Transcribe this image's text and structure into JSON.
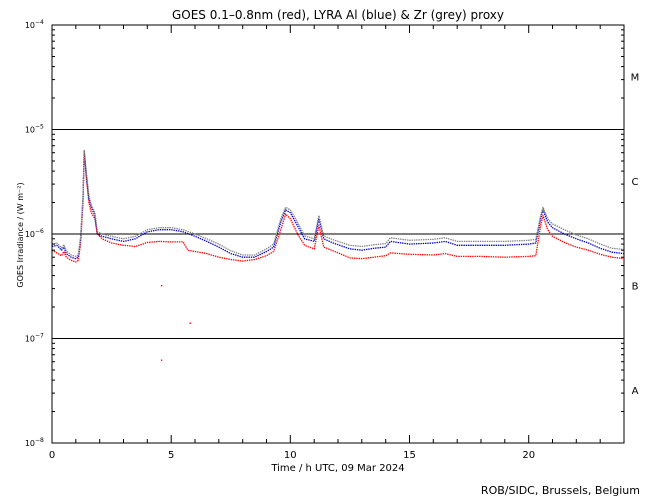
{
  "chart_data": {
    "type": "line",
    "title": "GOES 0.1–0.8nm (red), LYRA Al (blue) & Zr (grey) proxy",
    "xlabel": "Time / h UTC, 09 Mar 2024",
    "ylabel": "GOES Irradiance / (W m⁻²)",
    "xlim": [
      0,
      24
    ],
    "ylim": [
      1e-08,
      0.0001
    ],
    "yscale": "log",
    "x_ticks": [
      0,
      5,
      10,
      15,
      20
    ],
    "y_ticks": [
      {
        "value": 1e-08,
        "base": "10",
        "exp": "−8"
      },
      {
        "value": 1e-07,
        "base": "10",
        "exp": "−7"
      },
      {
        "value": 1e-06,
        "base": "10",
        "exp": "−6"
      },
      {
        "value": 1e-05,
        "base": "10",
        "exp": "−5"
      },
      {
        "value": 0.0001,
        "base": "10",
        "exp": "−4"
      }
    ],
    "reference_lines": [
      1e-07,
      1e-06,
      1e-05
    ],
    "flare_classes": [
      {
        "label": "A",
        "y": 3.2e-08
      },
      {
        "label": "B",
        "y": 3.2e-07
      },
      {
        "label": "C",
        "y": 3.2e-06
      },
      {
        "label": "M",
        "y": 3.2e-05
      }
    ],
    "series": [
      {
        "color": "#ff0000",
        "points": [
          [
            0.0,
            7e-07
          ],
          [
            0.2,
            6.6e-07
          ],
          [
            0.4,
            6.2e-07
          ],
          [
            0.5,
            6.8e-07
          ],
          [
            0.6,
            6e-07
          ],
          [
            0.8,
            5.6e-07
          ],
          [
            1.0,
            5.4e-07
          ],
          [
            1.1,
            5.6e-07
          ],
          [
            1.2,
            8e-07
          ],
          [
            1.3,
            2e-06
          ],
          [
            1.35,
            6.2e-06
          ],
          [
            1.45,
            3.2e-06
          ],
          [
            1.55,
            2e-06
          ],
          [
            1.65,
            1.6e-06
          ],
          [
            1.8,
            1.4e-06
          ],
          [
            1.9,
            1e-06
          ],
          [
            2.1,
            9e-07
          ],
          [
            2.5,
            8.2e-07
          ],
          [
            3.0,
            7.8e-07
          ],
          [
            3.5,
            7.6e-07
          ],
          [
            4.0,
            8.3e-07
          ],
          [
            4.5,
            8.5e-07
          ],
          [
            5.0,
            8.4e-07
          ],
          [
            5.5,
            8.4e-07
          ],
          [
            5.7,
            7e-07
          ],
          [
            6.0,
            6.8e-07
          ],
          [
            6.5,
            6.5e-07
          ],
          [
            7.0,
            6e-07
          ],
          [
            7.5,
            5.7e-07
          ],
          [
            8.0,
            5.5e-07
          ],
          [
            8.5,
            5.7e-07
          ],
          [
            9.0,
            6.2e-07
          ],
          [
            9.3,
            6.8e-07
          ],
          [
            9.6,
            1.1e-06
          ],
          [
            9.8,
            1.55e-06
          ],
          [
            10.0,
            1.4e-06
          ],
          [
            10.3,
            1e-06
          ],
          [
            10.6,
            7.8e-07
          ],
          [
            11.0,
            7.2e-07
          ],
          [
            11.2,
            1.2e-06
          ],
          [
            11.4,
            7.5e-07
          ],
          [
            11.8,
            6.9e-07
          ],
          [
            12.5,
            5.9e-07
          ],
          [
            13.0,
            5.8e-07
          ],
          [
            13.5,
            6e-07
          ],
          [
            14.0,
            6.2e-07
          ],
          [
            14.2,
            6.6e-07
          ],
          [
            15.0,
            6.4e-07
          ],
          [
            16.0,
            6.3e-07
          ],
          [
            16.5,
            6.5e-07
          ],
          [
            17.0,
            6.1e-07
          ],
          [
            18.0,
            6.1e-07
          ],
          [
            19.0,
            6e-07
          ],
          [
            20.0,
            6.1e-07
          ],
          [
            20.3,
            6.2e-07
          ],
          [
            20.5,
            1.2e-06
          ],
          [
            20.6,
            1.5e-06
          ],
          [
            20.8,
            1.1e-06
          ],
          [
            21.0,
            9.5e-07
          ],
          [
            21.5,
            8.3e-07
          ],
          [
            22.0,
            7.5e-07
          ],
          [
            22.5,
            7e-07
          ],
          [
            23.0,
            6.4e-07
          ],
          [
            23.5,
            6e-07
          ],
          [
            24.0,
            5.8e-07
          ]
        ],
        "outliers": [
          [
            4.6,
            3.2e-07
          ],
          [
            4.6,
            6.2e-08
          ],
          [
            5.8,
            1.4e-07
          ]
        ]
      },
      {
        "color": "#0000cc",
        "points": [
          [
            0.0,
            7.6e-07
          ],
          [
            0.2,
            7.8e-07
          ],
          [
            0.4,
            7e-07
          ],
          [
            0.5,
            7.5e-07
          ],
          [
            0.6,
            6.5e-07
          ],
          [
            0.8,
            6e-07
          ],
          [
            1.0,
            5.8e-07
          ],
          [
            1.1,
            6e-07
          ],
          [
            1.2,
            9e-07
          ],
          [
            1.3,
            2.2e-06
          ],
          [
            1.35,
            6e-06
          ],
          [
            1.45,
            3.5e-06
          ],
          [
            1.55,
            2.2e-06
          ],
          [
            1.65,
            1.8e-06
          ],
          [
            1.8,
            1.5e-06
          ],
          [
            1.9,
            1e-06
          ],
          [
            2.1,
            9.5e-07
          ],
          [
            2.5,
            9e-07
          ],
          [
            3.0,
            8.5e-07
          ],
          [
            3.5,
            9e-07
          ],
          [
            4.0,
            1.05e-06
          ],
          [
            4.5,
            1.1e-06
          ],
          [
            5.0,
            1.1e-06
          ],
          [
            5.5,
            1.05e-06
          ],
          [
            6.0,
            9.5e-07
          ],
          [
            6.5,
            8.5e-07
          ],
          [
            7.0,
            7.5e-07
          ],
          [
            7.5,
            6.5e-07
          ],
          [
            8.0,
            6e-07
          ],
          [
            8.5,
            6e-07
          ],
          [
            9.0,
            6.8e-07
          ],
          [
            9.3,
            7.5e-07
          ],
          [
            9.6,
            1.3e-06
          ],
          [
            9.8,
            1.7e-06
          ],
          [
            10.0,
            1.6e-06
          ],
          [
            10.3,
            1.2e-06
          ],
          [
            10.6,
            9e-07
          ],
          [
            11.0,
            8.5e-07
          ],
          [
            11.2,
            1.4e-06
          ],
          [
            11.4,
            9e-07
          ],
          [
            11.8,
            8.2e-07
          ],
          [
            12.5,
            7.2e-07
          ],
          [
            13.0,
            7e-07
          ],
          [
            13.5,
            7.3e-07
          ],
          [
            14.0,
            7.5e-07
          ],
          [
            14.2,
            8.5e-07
          ],
          [
            15.0,
            8e-07
          ],
          [
            16.0,
            8.2e-07
          ],
          [
            16.5,
            8.5e-07
          ],
          [
            17.0,
            7.8e-07
          ],
          [
            18.0,
            7.8e-07
          ],
          [
            19.0,
            7.8e-07
          ],
          [
            20.0,
            8e-07
          ],
          [
            20.3,
            8.2e-07
          ],
          [
            20.5,
            1.4e-06
          ],
          [
            20.6,
            1.7e-06
          ],
          [
            20.8,
            1.3e-06
          ],
          [
            21.0,
            1.15e-06
          ],
          [
            21.5,
            1e-06
          ],
          [
            22.0,
            9e-07
          ],
          [
            22.5,
            8.2e-07
          ],
          [
            23.0,
            7.3e-07
          ],
          [
            23.5,
            6.7e-07
          ],
          [
            24.0,
            6.5e-07
          ]
        ]
      },
      {
        "color": "#808080",
        "points": [
          [
            0.0,
            8e-07
          ],
          [
            0.2,
            8.2e-07
          ],
          [
            0.4,
            7.4e-07
          ],
          [
            0.5,
            7.9e-07
          ],
          [
            0.6,
            6.9e-07
          ],
          [
            0.8,
            6.3e-07
          ],
          [
            1.0,
            6.1e-07
          ],
          [
            1.1,
            6.3e-07
          ],
          [
            1.2,
            9.4e-07
          ],
          [
            1.3,
            2.3e-06
          ],
          [
            1.35,
            6.3e-06
          ],
          [
            1.45,
            3.7e-06
          ],
          [
            1.55,
            2.3e-06
          ],
          [
            1.65,
            1.9e-06
          ],
          [
            1.8,
            1.6e-06
          ],
          [
            1.9,
            1.05e-06
          ],
          [
            2.1,
            1e-06
          ],
          [
            2.5,
            9.5e-07
          ],
          [
            3.0,
            9e-07
          ],
          [
            3.5,
            9.5e-07
          ],
          [
            4.0,
            1.1e-06
          ],
          [
            4.5,
            1.15e-06
          ],
          [
            5.0,
            1.15e-06
          ],
          [
            5.5,
            1.1e-06
          ],
          [
            6.0,
            1e-06
          ],
          [
            6.5,
            9e-07
          ],
          [
            7.0,
            8e-07
          ],
          [
            7.5,
            6.9e-07
          ],
          [
            8.0,
            6.3e-07
          ],
          [
            8.5,
            6.3e-07
          ],
          [
            9.0,
            7.2e-07
          ],
          [
            9.3,
            8e-07
          ],
          [
            9.6,
            1.4e-06
          ],
          [
            9.8,
            1.8e-06
          ],
          [
            10.0,
            1.7e-06
          ],
          [
            10.3,
            1.3e-06
          ],
          [
            10.6,
            9.6e-07
          ],
          [
            11.0,
            9e-07
          ],
          [
            11.2,
            1.5e-06
          ],
          [
            11.4,
            9.6e-07
          ],
          [
            11.8,
            8.8e-07
          ],
          [
            12.5,
            7.8e-07
          ],
          [
            13.0,
            7.6e-07
          ],
          [
            13.5,
            7.9e-07
          ],
          [
            14.0,
            8.1e-07
          ],
          [
            14.2,
            9.2e-07
          ],
          [
            15.0,
            8.7e-07
          ],
          [
            16.0,
            8.9e-07
          ],
          [
            16.5,
            9.2e-07
          ],
          [
            17.0,
            8.5e-07
          ],
          [
            18.0,
            8.5e-07
          ],
          [
            19.0,
            8.5e-07
          ],
          [
            20.0,
            8.7e-07
          ],
          [
            20.3,
            8.9e-07
          ],
          [
            20.5,
            1.5e-06
          ],
          [
            20.6,
            1.8e-06
          ],
          [
            20.8,
            1.4e-06
          ],
          [
            21.0,
            1.25e-06
          ],
          [
            21.5,
            1.1e-06
          ],
          [
            22.0,
            9.8e-07
          ],
          [
            22.5,
            9e-07
          ],
          [
            23.0,
            8e-07
          ],
          [
            23.5,
            7.3e-07
          ],
          [
            24.0,
            7.1e-07
          ]
        ]
      }
    ],
    "grid": false,
    "legend": "none"
  },
  "credit": "ROB/SIDC, Brussels, Belgium"
}
